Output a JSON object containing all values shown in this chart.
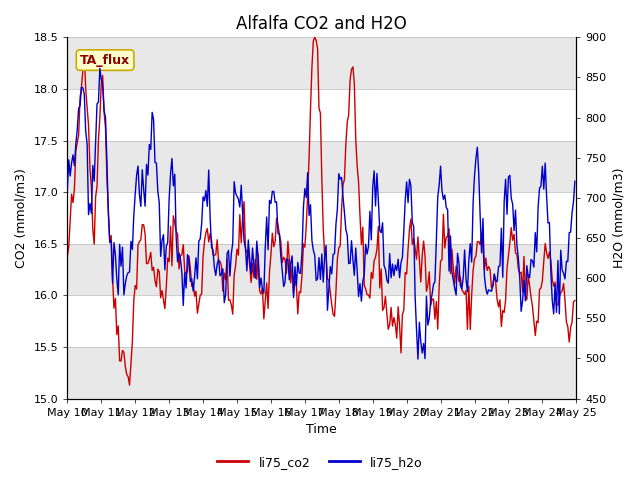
{
  "title": "Alfalfa CO2 and H2O",
  "xlabel": "Time",
  "ylabel_left": "CO2 (mmol/m3)",
  "ylabel_right": "H2O (mmol/m3)",
  "ylim_left": [
    15.0,
    18.5
  ],
  "ylim_right": [
    450,
    900
  ],
  "yticks_left": [
    15.0,
    15.5,
    16.0,
    16.5,
    17.0,
    17.5,
    18.0,
    18.5
  ],
  "yticks_right": [
    450,
    500,
    550,
    600,
    650,
    700,
    750,
    800,
    850,
    900
  ],
  "xtick_labels": [
    "May 10",
    "May 11",
    "May 12",
    "May 13",
    "May 14",
    "May 15",
    "May 16",
    "May 17",
    "May 18",
    "May 19",
    "May 20",
    "May 21",
    "May 22",
    "May 23",
    "May 24",
    "May 25"
  ],
  "legend_labels": [
    "li75_co2",
    "li75_h2o"
  ],
  "color_co2": "#cc0000",
  "color_h2o": "#0000cc",
  "annotation_text": "TA_flux",
  "bg_band_colors": [
    "#e8e8e8",
    "#ffffff"
  ],
  "title_fontsize": 12,
  "axis_fontsize": 9,
  "tick_fontsize": 8,
  "legend_fontsize": 9,
  "linewidth": 1.0
}
